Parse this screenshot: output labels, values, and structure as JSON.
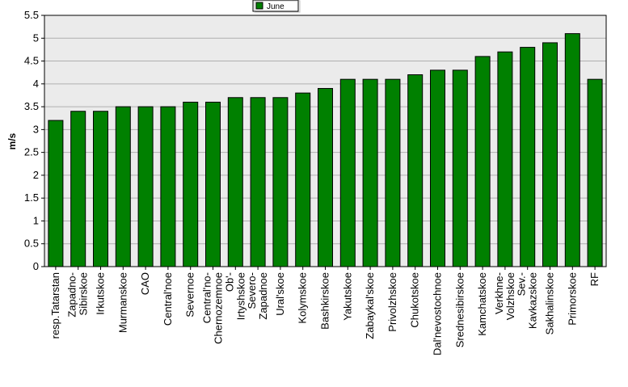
{
  "chart_data": {
    "type": "bar",
    "ylabel": "m/s",
    "ylim": [
      0,
      5.5
    ],
    "yticks": [
      "0",
      "0.5",
      "1",
      "1.5",
      "2",
      "2.5",
      "3",
      "3.5",
      "4",
      "4.5",
      "5",
      "5.5"
    ],
    "grid": true,
    "legend_position": "top-center",
    "series": [
      {
        "name": "June",
        "color": "#008000",
        "values": [
          3.2,
          3.4,
          3.4,
          3.5,
          3.5,
          3.5,
          3.6,
          3.6,
          3.7,
          3.7,
          3.7,
          3.8,
          3.9,
          4.1,
          4.1,
          4.1,
          4.2,
          4.3,
          4.3,
          4.6,
          4.7,
          4.8,
          4.9,
          5.1,
          4.1
        ]
      }
    ],
    "categories": [
      [
        "resp.Tatarstan"
      ],
      [
        "Zapadno-",
        "Sibirskoe"
      ],
      [
        "Irkutskoe"
      ],
      [
        "Murmanskoe"
      ],
      [
        "CAO"
      ],
      [
        "Central'noe"
      ],
      [
        "Severnoe"
      ],
      [
        "Central'no-",
        "Chernozemnoe"
      ],
      [
        "Ob'-",
        "Irtyshskoe"
      ],
      [
        "Severo-",
        "Zapadnoe"
      ],
      [
        "Ural'skoe"
      ],
      [
        "Kolymskoe"
      ],
      [
        "Bashkirskoe"
      ],
      [
        "Yakutskoe"
      ],
      [
        "Zabaykal'skoe"
      ],
      [
        "Privolzhskoe"
      ],
      [
        "Chukotskoe"
      ],
      [
        "Dal'nevostochnoe"
      ],
      [
        "Srednesibirskoe"
      ],
      [
        "Kamchatskoe"
      ],
      [
        "Verkhne-",
        "Volzhskoe"
      ],
      [
        "Sev.-",
        "Kavkazskoe"
      ],
      [
        "Sakhalinskoe"
      ],
      [
        "Primorskoe"
      ],
      [
        "RF"
      ]
    ]
  }
}
